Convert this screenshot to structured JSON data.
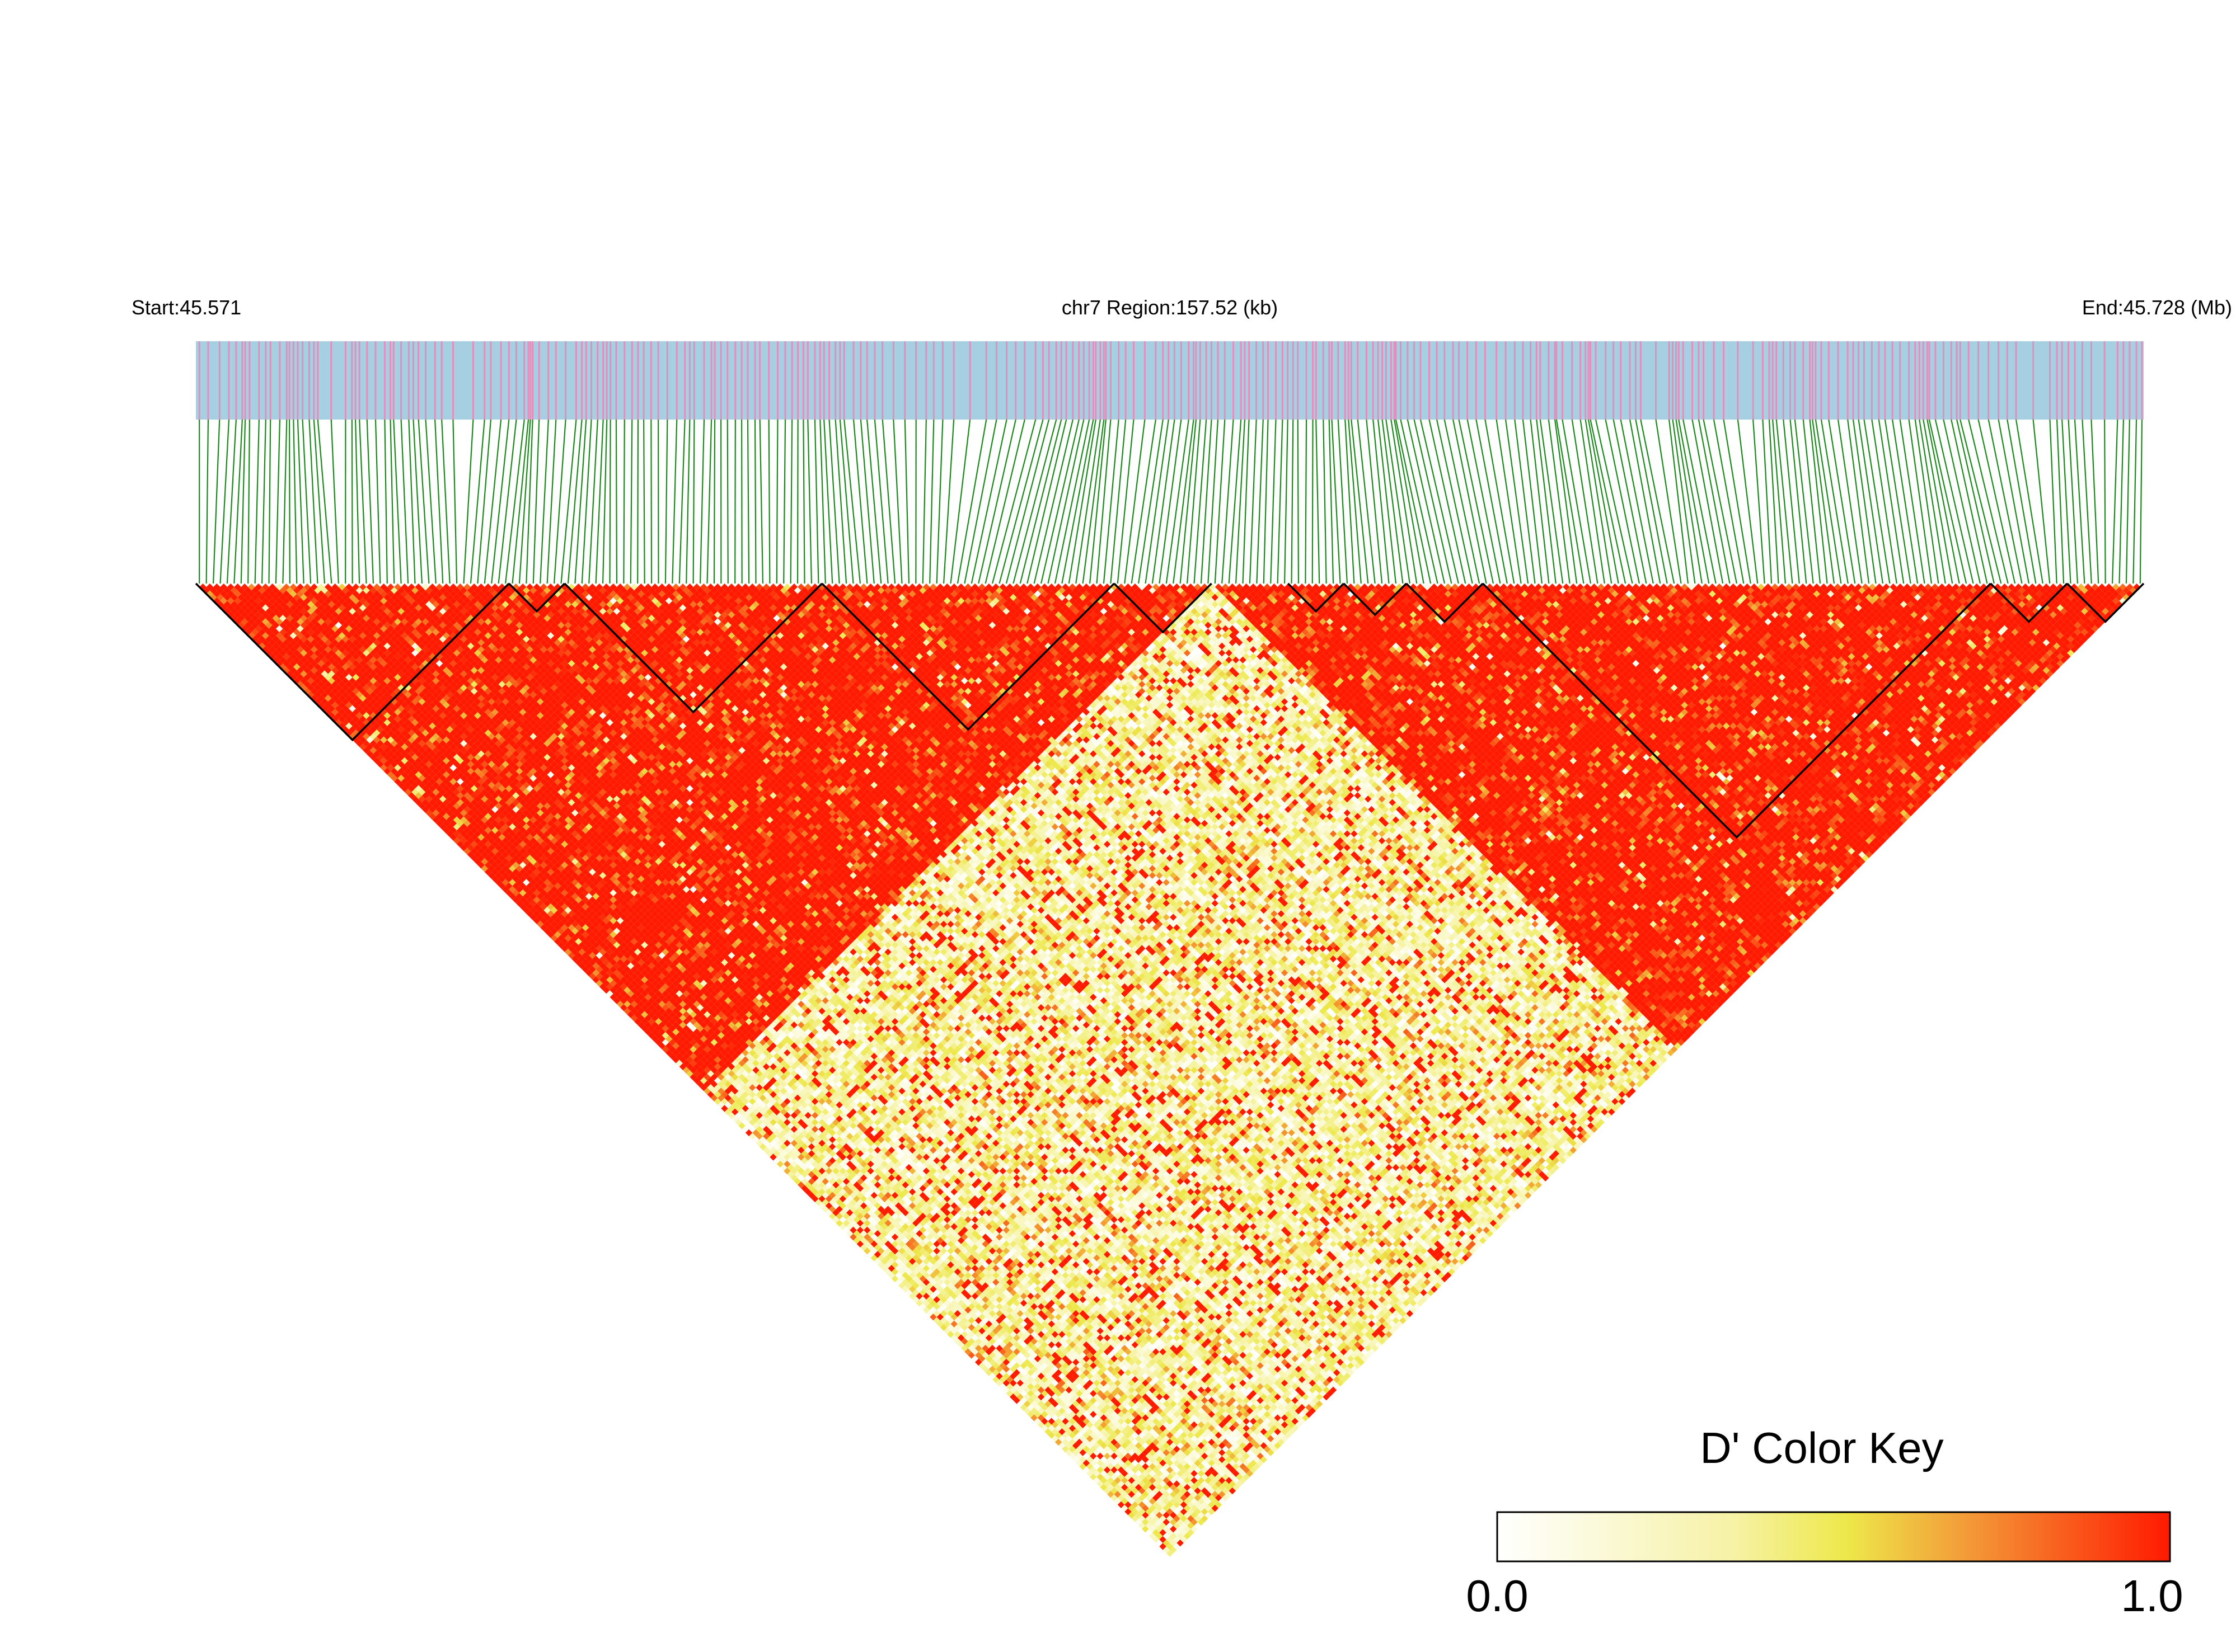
{
  "header": {
    "start_label": "Start:45.571",
    "region_label": "chr7 Region:157.52 (kb)",
    "end_label": "End:45.728 (Mb)"
  },
  "legend": {
    "title": "D' Color Key",
    "min_label": "0.0",
    "max_label": "1.0"
  },
  "colors": {
    "track_background": "#a6cfe2",
    "snp_tick": "#e38fbd",
    "connector": "#1a8a1a",
    "block_outline": "#000000",
    "key_low": "#ffffff",
    "key_mid": "#ede84a",
    "key_high": "#ff1a00"
  },
  "chart_data": {
    "type": "heatmap",
    "subtype": "ld-triangle",
    "chromosome": "chr7",
    "region_start_mb": 45.571,
    "region_end_mb": 45.728,
    "region_length_kb": 157.52,
    "metric": "D'",
    "color_scale_range": [
      0.0,
      1.0
    ],
    "snp_count_approx": 280,
    "ld_blocks_fraction": [
      [
        0.0,
        0.16
      ],
      [
        0.16,
        0.19
      ],
      [
        0.19,
        0.32
      ],
      [
        0.32,
        0.47
      ],
      [
        0.47,
        0.52
      ],
      [
        0.56,
        0.59
      ],
      [
        0.59,
        0.62
      ],
      [
        0.62,
        0.66
      ],
      [
        0.66,
        0.92
      ],
      [
        0.92,
        0.96
      ],
      [
        0.96,
        1.0
      ]
    ],
    "dominant_regions": [
      {
        "rows_fraction": [
          0.0,
          0.52
        ],
        "cols_fraction": [
          0.0,
          0.52
        ],
        "level": "high (about 1.0)"
      },
      {
        "rows_fraction": [
          0.52,
          1.0
        ],
        "cols_fraction": [
          0.52,
          1.0
        ],
        "level": "high (about 1.0)"
      },
      {
        "rows_fraction": [
          0.0,
          0.52
        ],
        "cols_fraction": [
          0.52,
          1.0
        ],
        "level": "low (about 0.2 to 0.5)"
      }
    ],
    "legend_placement": "bottom-right"
  }
}
